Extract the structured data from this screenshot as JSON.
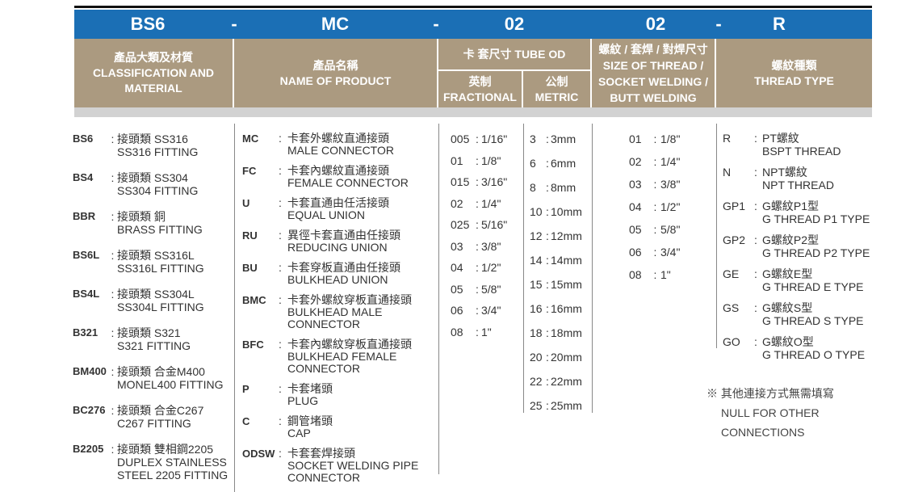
{
  "header": {
    "codes": [
      "BS6",
      "-",
      "MC",
      "-",
      "02",
      "02",
      "-",
      "R"
    ],
    "classification": [
      "產品大類及材質",
      "CLASSIFICATION AND",
      "MATERIAL"
    ],
    "product": [
      "產品名稱",
      "NAME OF PRODUCT"
    ],
    "tube_od": "卡 套尺寸 TUBE OD",
    "fractional": [
      "英制",
      "FRACTIONAL"
    ],
    "metric": [
      "公制",
      "METRIC"
    ],
    "thread_size": [
      "螺紋 / 套焊 / 對焊尺寸",
      "SIZE OF THREAD /",
      "SOCKET WELDING /",
      "BUTT WELDING"
    ],
    "thread_type": [
      "螺紋種類",
      "THREAD TYPE"
    ]
  },
  "classification": [
    {
      "code": "BS6",
      "lines": [
        "接頭類  SS316",
        "SS316 FITTING"
      ]
    },
    {
      "code": "BS4",
      "lines": [
        "接頭類  SS304",
        "SS304 FITTING"
      ]
    },
    {
      "code": "BBR",
      "lines": [
        "接頭類  銅",
        "BRASS FITTING"
      ]
    },
    {
      "code": "BS6L",
      "lines": [
        "接頭類  SS316L",
        "SS316L FITTING"
      ]
    },
    {
      "code": "BS4L",
      "lines": [
        "接頭類  SS304L",
        "SS304L FITTING"
      ]
    },
    {
      "code": "B321",
      "lines": [
        "接頭類  S321",
        "S321 FITTING"
      ]
    },
    {
      "code": "BM400",
      "lines": [
        "接頭類  合金M400",
        "MONEL400 FITTING"
      ]
    },
    {
      "code": "BC276",
      "lines": [
        "接頭類  合金C267",
        "C267 FITTING"
      ]
    },
    {
      "code": "B2205",
      "lines": [
        "接頭類  雙相鋼2205",
        "DUPLEX STAINLESS",
        "STEEL 2205 FITTING"
      ]
    }
  ],
  "products": [
    {
      "code": "MC",
      "lines": [
        "卡套外螺紋直通接頭",
        "MALE CONNECTOR"
      ]
    },
    {
      "code": "FC",
      "lines": [
        "卡套內螺紋直通接頭",
        "FEMALE CONNECTOR"
      ]
    },
    {
      "code": "U",
      "lines": [
        "卡套直通由任活接頭",
        "EQUAL UNION"
      ]
    },
    {
      "code": "RU",
      "lines": [
        "異徑卡套直通由任接頭",
        "REDUCING UNION"
      ]
    },
    {
      "code": "BU",
      "lines": [
        "卡套穿板直通由任接頭",
        "BULKHEAD UNION"
      ]
    },
    {
      "code": "BMC",
      "lines": [
        "卡套外螺紋穿板直通接頭",
        "BULKHEAD MALE",
        "CONNECTOR"
      ]
    },
    {
      "code": "BFC",
      "lines": [
        "卡套內螺紋穿板直通接頭",
        "BULKHEAD FEMALE",
        "CONNECTOR"
      ]
    },
    {
      "code": "P",
      "lines": [
        "卡套堵頭",
        "PLUG"
      ]
    },
    {
      "code": "C",
      "lines": [
        "鋼管堵頭",
        "CAP"
      ]
    },
    {
      "code": "ODSW",
      "lines": [
        "卡套套焊接頭",
        "SOCKET WELDING PIPE",
        "CONNECTOR"
      ]
    }
  ],
  "fractional": [
    {
      "code": "005",
      "lines": [
        "1/16\""
      ]
    },
    {
      "code": "01",
      "lines": [
        "1/8\""
      ]
    },
    {
      "code": "015",
      "lines": [
        "3/16\""
      ]
    },
    {
      "code": "02",
      "lines": [
        "1/4\""
      ]
    },
    {
      "code": "025",
      "lines": [
        "5/16\""
      ]
    },
    {
      "code": "03",
      "lines": [
        "3/8\""
      ]
    },
    {
      "code": "04",
      "lines": [
        "1/2\""
      ]
    },
    {
      "code": "05",
      "lines": [
        "5/8\""
      ]
    },
    {
      "code": "06",
      "lines": [
        "3/4\""
      ]
    },
    {
      "code": "08",
      "lines": [
        "1\""
      ]
    }
  ],
  "metric": [
    {
      "code": "3",
      "lines": [
        "3mm"
      ]
    },
    {
      "code": "6",
      "lines": [
        "6mm"
      ]
    },
    {
      "code": "8",
      "lines": [
        "8mm"
      ]
    },
    {
      "code": "10",
      "lines": [
        "10mm"
      ]
    },
    {
      "code": "12",
      "lines": [
        "12mm"
      ]
    },
    {
      "code": "14",
      "lines": [
        "14mm"
      ]
    },
    {
      "code": "15",
      "lines": [
        "15mm"
      ]
    },
    {
      "code": "16",
      "lines": [
        "16mm"
      ]
    },
    {
      "code": "18",
      "lines": [
        "18mm"
      ]
    },
    {
      "code": "20",
      "lines": [
        "20mm"
      ]
    },
    {
      "code": "22",
      "lines": [
        "22mm"
      ]
    },
    {
      "code": "25",
      "lines": [
        "25mm"
      ]
    }
  ],
  "thread_sizes": [
    {
      "code": "01",
      "lines": [
        "1/8\""
      ]
    },
    {
      "code": "02",
      "lines": [
        "1/4\""
      ]
    },
    {
      "code": "03",
      "lines": [
        "3/8\""
      ]
    },
    {
      "code": "04",
      "lines": [
        "1/2\""
      ]
    },
    {
      "code": "05",
      "lines": [
        "5/8\""
      ]
    },
    {
      "code": "06",
      "lines": [
        "3/4\""
      ]
    },
    {
      "code": "08",
      "lines": [
        "1\""
      ]
    }
  ],
  "thread_types": [
    {
      "code": "R",
      "lines": [
        "PT螺紋",
        "BSPT THREAD"
      ]
    },
    {
      "code": "N",
      "lines": [
        "NPT螺紋",
        "NPT THREAD"
      ]
    },
    {
      "code": "GP1",
      "lines": [
        "G螺紋P1型",
        "G THREAD P1 TYPE"
      ]
    },
    {
      "code": "GP2",
      "lines": [
        "G螺紋P2型",
        "G THREAD P2 TYPE"
      ]
    },
    {
      "code": "GE",
      "lines": [
        "G螺紋E型",
        "G THREAD E TYPE"
      ]
    },
    {
      "code": "GS",
      "lines": [
        "G螺紋S型",
        "G THREAD S TYPE"
      ]
    },
    {
      "code": "GO",
      "lines": [
        "G螺紋O型",
        "G THREAD O TYPE"
      ]
    }
  ],
  "note": [
    "※ 其他連接方式無需填寫",
    "NULL FOR OTHER",
    "CONNECTIONS"
  ],
  "colors": {
    "blue": "#1b6fb5",
    "tan": "#ab9a80",
    "gray": "#d2d2d2"
  }
}
